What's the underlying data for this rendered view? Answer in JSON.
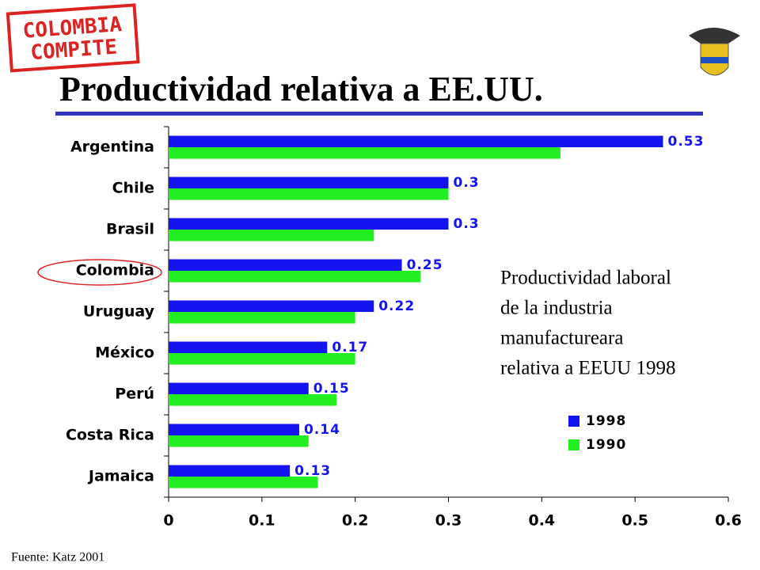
{
  "logo": [
    "COLOMBIA",
    "COMPITE"
  ],
  "chart_data": {
    "type": "bar",
    "orientation": "horizontal",
    "title": "Productividad relativa a EE.UU.",
    "categories": [
      "Argentina",
      "Chile",
      "Brasil",
      "Colombia",
      "Uruguay",
      "México",
      "Perú",
      "Costa Rica",
      "Jamaica"
    ],
    "series": [
      {
        "name": "1998",
        "color": "#1414f0",
        "values": [
          0.53,
          0.3,
          0.3,
          0.25,
          0.22,
          0.17,
          0.15,
          0.14,
          0.13
        ],
        "show_value_labels": true
      },
      {
        "name": "1990",
        "color": "#22ee22",
        "values": [
          0.42,
          0.3,
          0.22,
          0.27,
          0.2,
          0.2,
          0.18,
          0.15,
          0.16
        ],
        "show_value_labels": false
      }
    ],
    "xlim": [
      0,
      0.6
    ],
    "xticks": [
      0,
      0.1,
      0.2,
      0.3,
      0.4,
      0.5,
      0.6
    ],
    "annotation": [
      "Productividad laboral",
      "de la industria",
      "manufactureara",
      "relativa a EEUU 1998"
    ],
    "source": "Fuente: Katz 2001"
  }
}
